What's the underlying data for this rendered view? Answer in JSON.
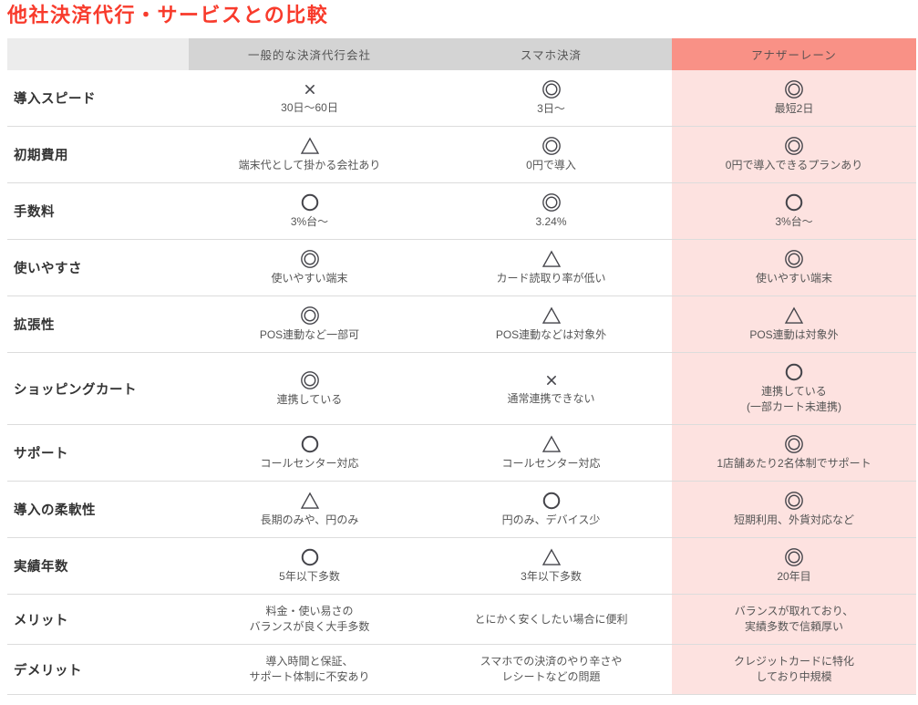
{
  "title": "他社決済代行・サービスとの比較",
  "colors": {
    "title_red": "#f83b2c",
    "header_gray": "#d4d4d4",
    "header_empty": "#ececec",
    "header_salmon": "#f99186",
    "pink": "#fde2e0",
    "border": "#dcdcdc",
    "label_text": "#333333",
    "cell_text": "#555555",
    "header_text": "#555555",
    "salmon_header_text": "#5f5252",
    "symbol": "#44444a"
  },
  "symbol_legend": {
    "double-circle": "◎",
    "circle": "○",
    "triangle": "△",
    "cross": "×"
  },
  "table": {
    "columns": [
      "",
      "一般的な決済代行会社",
      "スマホ決済",
      "アナザーレーン"
    ],
    "rows": [
      {
        "label": "導入スピード",
        "cells": [
          {
            "symbol": "cross",
            "lines": [
              "30日〜60日"
            ]
          },
          {
            "symbol": "double-circle",
            "lines": [
              "3日〜"
            ]
          },
          {
            "symbol": "double-circle",
            "lines": [
              "最短2日"
            ]
          }
        ]
      },
      {
        "label": "初期費用",
        "cells": [
          {
            "symbol": "triangle",
            "lines": [
              "端末代として掛かる会社あり"
            ]
          },
          {
            "symbol": "double-circle",
            "lines": [
              "0円で導入"
            ]
          },
          {
            "symbol": "double-circle",
            "lines": [
              "0円で導入できるプランあり"
            ]
          }
        ]
      },
      {
        "label": "手数料",
        "cells": [
          {
            "symbol": "circle",
            "lines": [
              "3%台〜"
            ]
          },
          {
            "symbol": "double-circle",
            "lines": [
              "3.24%"
            ]
          },
          {
            "symbol": "circle",
            "lines": [
              "3%台〜"
            ]
          }
        ]
      },
      {
        "label": "使いやすさ",
        "cells": [
          {
            "symbol": "double-circle",
            "lines": [
              "使いやすい端末"
            ]
          },
          {
            "symbol": "triangle",
            "lines": [
              "カード読取り率が低い"
            ]
          },
          {
            "symbol": "double-circle",
            "lines": [
              "使いやすい端末"
            ]
          }
        ]
      },
      {
        "label": "拡張性",
        "cells": [
          {
            "symbol": "double-circle",
            "lines": [
              "POS連動など一部可"
            ]
          },
          {
            "symbol": "triangle",
            "lines": [
              "POS連動などは対象外"
            ]
          },
          {
            "symbol": "triangle",
            "lines": [
              "POS連動は対象外"
            ]
          }
        ]
      },
      {
        "label": "ショッピングカート",
        "cells": [
          {
            "symbol": "double-circle",
            "lines": [
              "連携している"
            ]
          },
          {
            "symbol": "cross",
            "lines": [
              "通常連携できない"
            ]
          },
          {
            "symbol": "circle",
            "lines": [
              "連携している",
              "(一部カート未連携)"
            ]
          }
        ]
      },
      {
        "label": "サポート",
        "cells": [
          {
            "symbol": "circle",
            "lines": [
              "コールセンター対応"
            ]
          },
          {
            "symbol": "triangle",
            "lines": [
              "コールセンター対応"
            ]
          },
          {
            "symbol": "double-circle",
            "lines": [
              "1店舗あたり2名体制でサポート"
            ]
          }
        ]
      },
      {
        "label": "導入の柔軟性",
        "cells": [
          {
            "symbol": "triangle",
            "lines": [
              "長期のみや、円のみ"
            ]
          },
          {
            "symbol": "circle",
            "lines": [
              "円のみ、デバイス少"
            ]
          },
          {
            "symbol": "double-circle",
            "lines": [
              "短期利用、外貨対応など"
            ]
          }
        ]
      },
      {
        "label": "実績年数",
        "cells": [
          {
            "symbol": "circle",
            "lines": [
              "5年以下多数"
            ]
          },
          {
            "symbol": "triangle",
            "lines": [
              "3年以下多数"
            ]
          },
          {
            "symbol": "double-circle",
            "lines": [
              "20年目"
            ]
          }
        ]
      },
      {
        "label": "メリット",
        "cells": [
          {
            "symbol": "none",
            "lines": [
              "料金・使い易さの",
              "バランスが良く大手多数"
            ]
          },
          {
            "symbol": "none",
            "lines": [
              "とにかく安くしたい場合に便利"
            ]
          },
          {
            "symbol": "none",
            "lines": [
              "バランスが取れており、",
              "実績多数で信頼厚い"
            ]
          }
        ]
      },
      {
        "label": "デメリット",
        "cells": [
          {
            "symbol": "none",
            "lines": [
              "導入時間と保証、",
              "サポート体制に不安あり"
            ]
          },
          {
            "symbol": "none",
            "lines": [
              "スマホでの決済のやり辛さや",
              "レシートなどの問題"
            ]
          },
          {
            "symbol": "none",
            "lines": [
              "クレジットカードに特化",
              "しており中規模"
            ]
          }
        ]
      }
    ]
  }
}
